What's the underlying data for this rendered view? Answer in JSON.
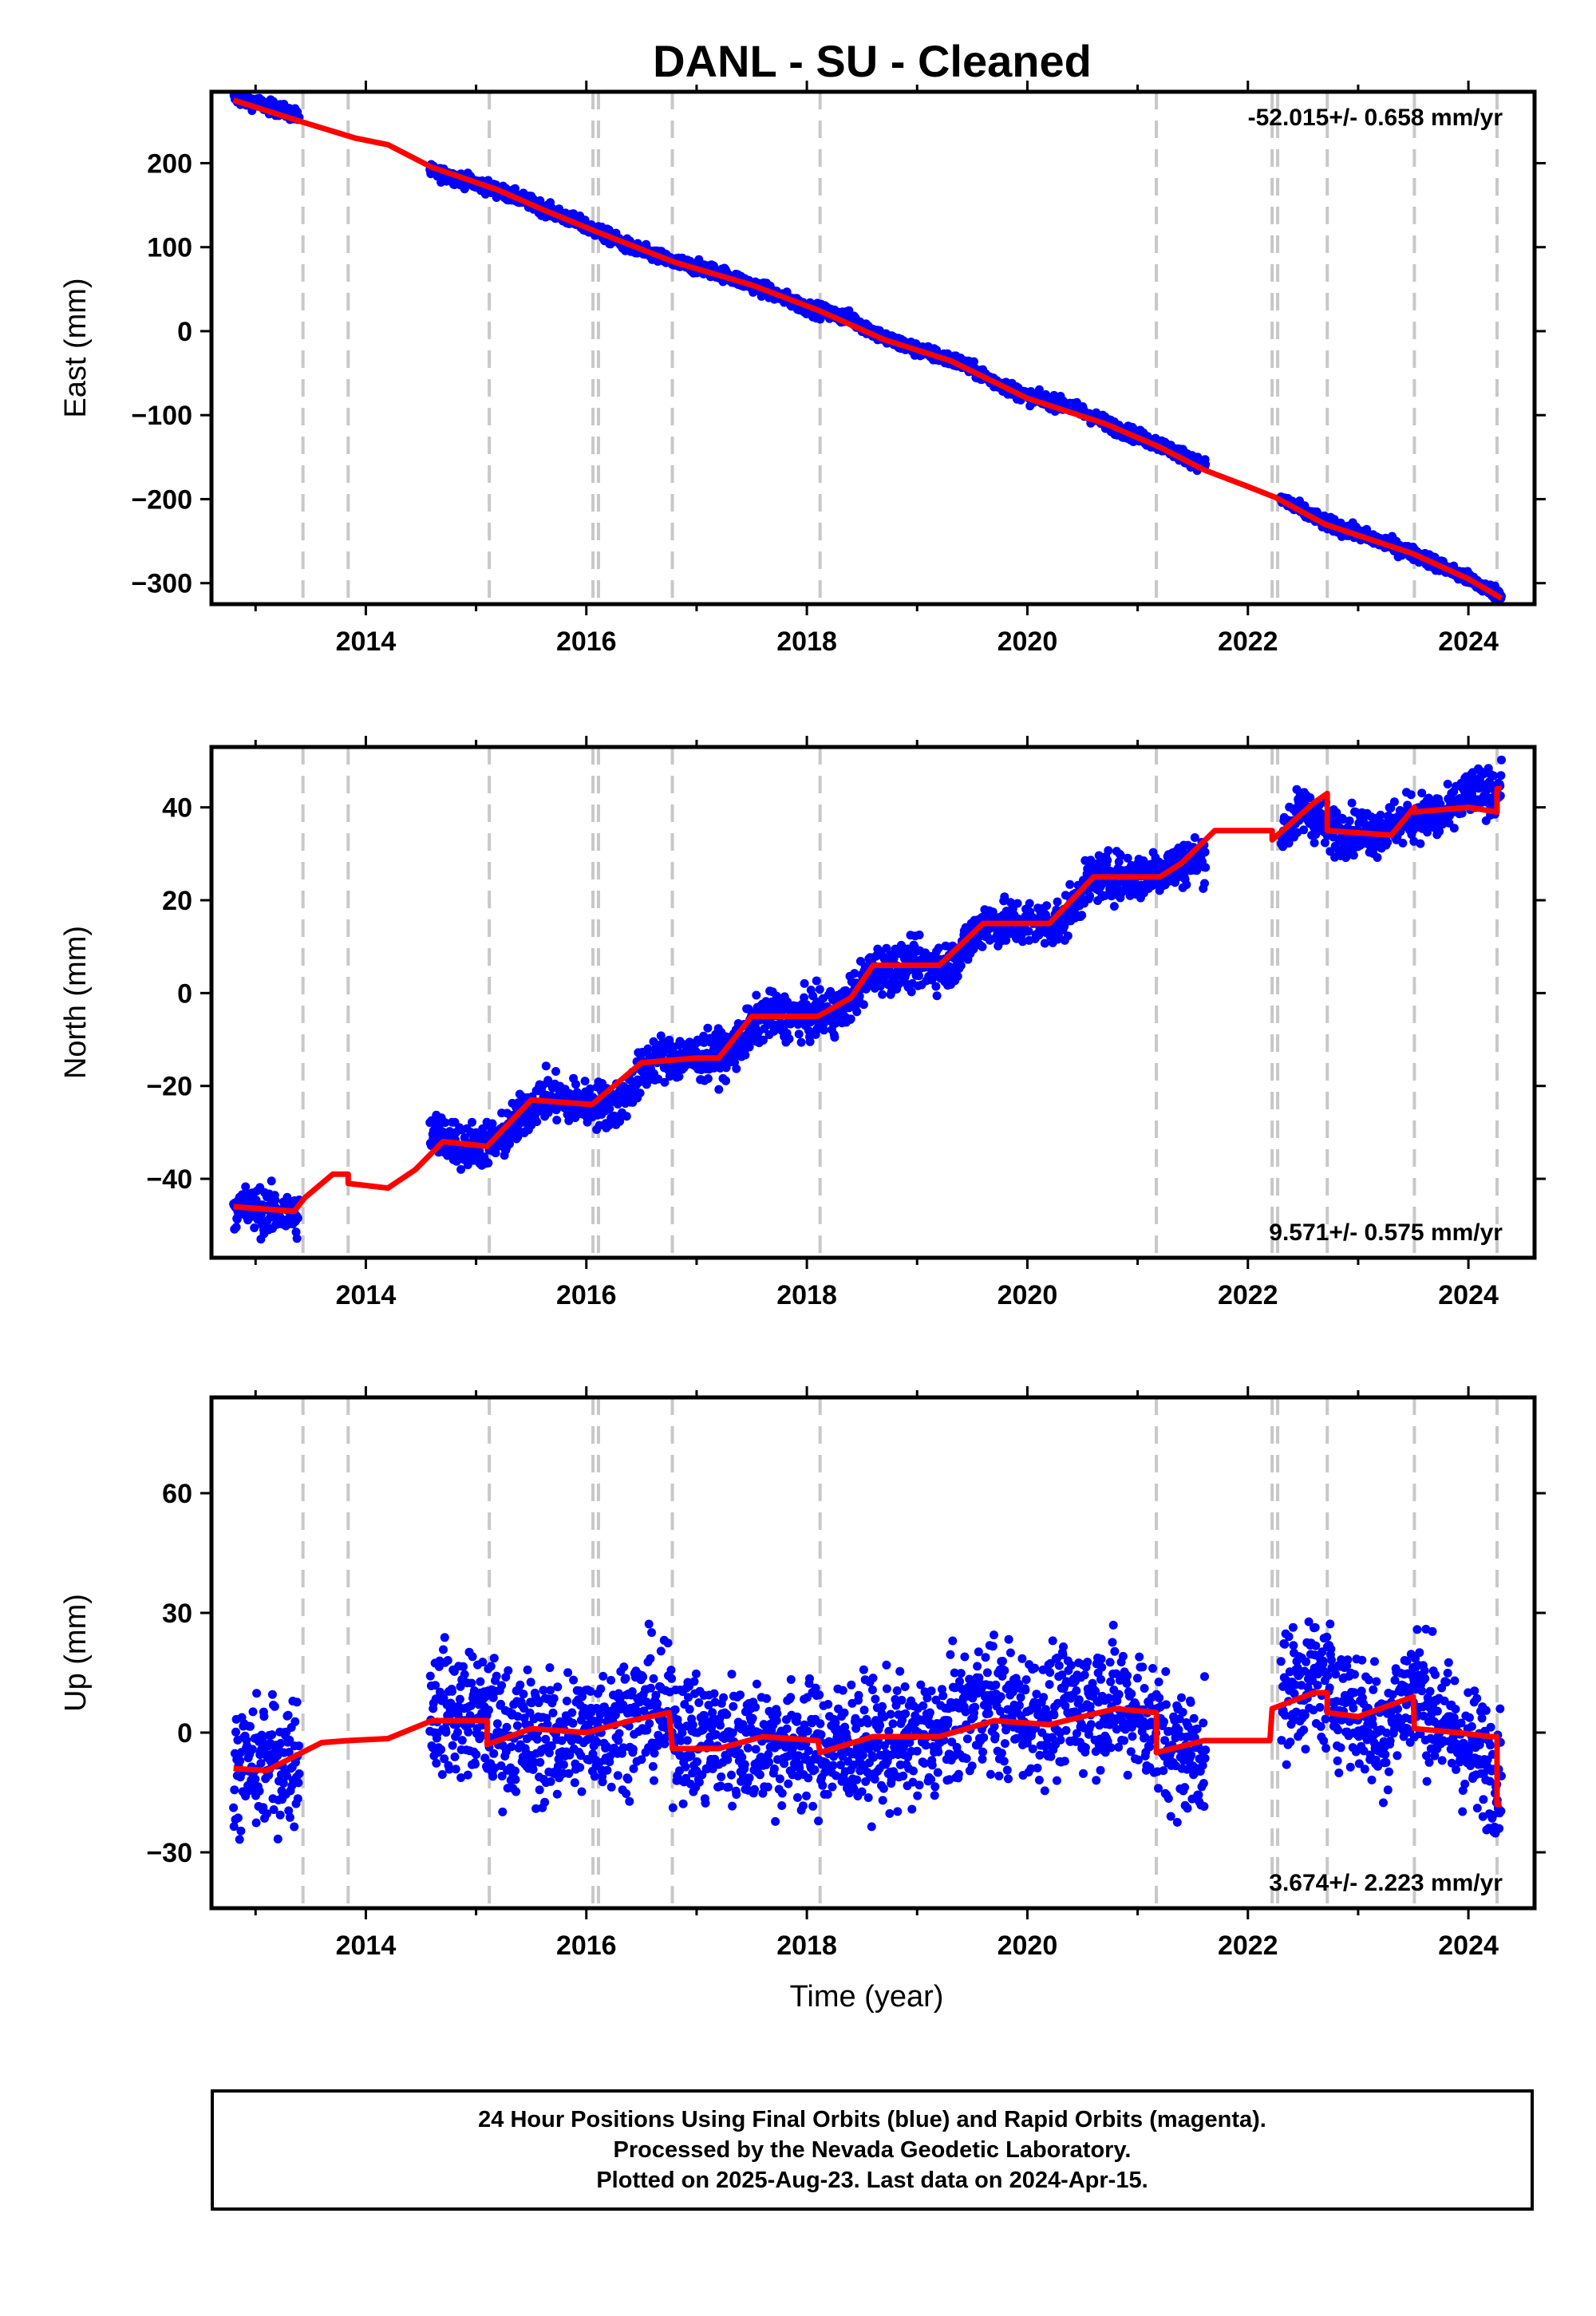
{
  "title": "DANL  - SU - Cleaned",
  "colors": {
    "final_orbits": "#0000ff",
    "model": "#ff0000",
    "breaks": "#c8c8c8"
  },
  "chart_data": [
    {
      "type": "scatter",
      "ylabel": "East (mm)",
      "xlabel": "",
      "xlim": [
        2012.6,
        2024.6
      ],
      "ylim": [
        -325,
        285
      ],
      "yticks": [
        -300,
        -200,
        -100,
        0,
        100,
        200
      ],
      "yticks_text": [
        "−300",
        "−200",
        "−100",
        "0",
        "100",
        "200"
      ],
      "xticks": [
        2014,
        2016,
        2018,
        2020,
        2022,
        2024
      ],
      "rate": "-52.015+/- 0.658 mm/yr",
      "rate_position": "top-right",
      "noise": 4,
      "series": [
        {
          "kind": "points",
          "values": [
            [
              2012.8,
              278
            ],
            [
              2013.0,
              272
            ],
            [
              2013.2,
              264
            ],
            [
              2013.35,
              258
            ],
            [
              2014.6,
              190
            ],
            [
              2015.0,
              176
            ],
            [
              2015.4,
              158
            ],
            [
              2016.0,
              125
            ],
            [
              2016.4,
              100
            ],
            [
              2016.8,
              82
            ],
            [
              2017.2,
              70
            ],
            [
              2017.6,
              50
            ],
            [
              2018.0,
              28
            ],
            [
              2018.4,
              15
            ],
            [
              2018.7,
              -8
            ],
            [
              2019.0,
              -22
            ],
            [
              2019.4,
              -38
            ],
            [
              2019.7,
              -60
            ],
            [
              2020.0,
              -78
            ],
            [
              2020.4,
              -90
            ],
            [
              2020.8,
              -115
            ],
            [
              2021.2,
              -135
            ],
            [
              2021.6,
              -160
            ],
            [
              2022.3,
              -200
            ],
            [
              2022.7,
              -228
            ],
            [
              2023.2,
              -250
            ],
            [
              2023.6,
              -270
            ],
            [
              2024.0,
              -295
            ],
            [
              2024.3,
              -315
            ]
          ]
        },
        {
          "kind": "line",
          "values": [
            [
              2012.8,
              275
            ],
            [
              2013.4,
              250
            ],
            [
              2013.9,
              230
            ],
            [
              2014.2,
              222
            ],
            [
              2014.6,
              195
            ],
            [
              2015.2,
              168
            ],
            [
              2015.6,
              145
            ],
            [
              2016.1,
              118
            ],
            [
              2016.8,
              82
            ],
            [
              2017.5,
              55
            ],
            [
              2018.1,
              25
            ],
            [
              2018.7,
              -10
            ],
            [
              2019.3,
              -35
            ],
            [
              2020.0,
              -80
            ],
            [
              2020.7,
              -110
            ],
            [
              2021.2,
              -138
            ],
            [
              2021.6,
              -165
            ],
            [
              2022.0,
              -185
            ],
            [
              2022.25,
              -198
            ],
            [
              2022.7,
              -230
            ],
            [
              2023.5,
              -265
            ],
            [
              2024.0,
              -295
            ],
            [
              2024.3,
              -318
            ]
          ]
        }
      ],
      "breaks": [
        2013.43,
        2013.84,
        2015.12,
        2016.06,
        2016.11,
        2016.78,
        2018.12,
        2021.17,
        2022.22,
        2022.27,
        2022.72,
        2023.51,
        2024.26
      ]
    },
    {
      "type": "scatter",
      "ylabel": "North (mm)",
      "xlabel": "",
      "xlim": [
        2012.6,
        2024.6
      ],
      "ylim": [
        -57,
        53
      ],
      "yticks": [
        -40,
        -20,
        0,
        20,
        40
      ],
      "yticks_text": [
        "−40",
        "−20",
        "0",
        "20",
        "40"
      ],
      "xticks": [
        2014,
        2016,
        2018,
        2020,
        2022,
        2024
      ],
      "rate": "9.571+/- 0.575 mm/yr",
      "rate_position": "bottom-right",
      "noise": 2.5,
      "series": [
        {
          "kind": "points",
          "values": [
            [
              2012.8,
              -46
            ],
            [
              2013.1,
              -47
            ],
            [
              2013.35,
              -48
            ],
            [
              2014.6,
              -30
            ],
            [
              2014.9,
              -33
            ],
            [
              2015.2,
              -32
            ],
            [
              2015.6,
              -22
            ],
            [
              2016.0,
              -24
            ],
            [
              2016.3,
              -24
            ],
            [
              2016.6,
              -14
            ],
            [
              2017.0,
              -14
            ],
            [
              2017.3,
              -13
            ],
            [
              2017.6,
              -5
            ],
            [
              2018.0,
              -5
            ],
            [
              2018.3,
              -4
            ],
            [
              2018.6,
              5
            ],
            [
              2019.0,
              6
            ],
            [
              2019.3,
              6
            ],
            [
              2019.6,
              15
            ],
            [
              2020.0,
              15
            ],
            [
              2020.3,
              15
            ],
            [
              2020.6,
              25
            ],
            [
              2021.0,
              25
            ],
            [
              2021.4,
              28
            ],
            [
              2022.3,
              34
            ],
            [
              2022.5,
              40
            ],
            [
              2022.75,
              35
            ],
            [
              2023.2,
              35
            ],
            [
              2023.5,
              38
            ],
            [
              2023.8,
              38
            ],
            [
              2024.0,
              43
            ],
            [
              2024.3,
              44
            ]
          ]
        },
        {
          "kind": "line",
          "values": [
            [
              2012.8,
              -46
            ],
            [
              2013.35,
              -47
            ],
            [
              2013.45,
              -44
            ],
            [
              2013.7,
              -39
            ],
            [
              2013.84,
              -39
            ],
            [
              2013.84,
              -41
            ],
            [
              2014.2,
              -42
            ],
            [
              2014.45,
              -38
            ],
            [
              2014.7,
              -32
            ],
            [
              2015.1,
              -33
            ],
            [
              2015.5,
              -23
            ],
            [
              2016.05,
              -24
            ],
            [
              2016.5,
              -15
            ],
            [
              2017.0,
              -14
            ],
            [
              2017.2,
              -14
            ],
            [
              2017.5,
              -5
            ],
            [
              2018.1,
              -5
            ],
            [
              2018.4,
              -1
            ],
            [
              2018.6,
              6
            ],
            [
              2019.2,
              6
            ],
            [
              2019.6,
              15
            ],
            [
              2020.2,
              15
            ],
            [
              2020.6,
              25
            ],
            [
              2021.2,
              25
            ],
            [
              2021.4,
              28
            ],
            [
              2021.7,
              35
            ],
            [
              2022.22,
              35
            ],
            [
              2022.22,
              33
            ],
            [
              2022.6,
              41
            ],
            [
              2022.72,
              43
            ],
            [
              2022.72,
              35
            ],
            [
              2023.3,
              34
            ],
            [
              2023.51,
              40
            ],
            [
              2023.51,
              39
            ],
            [
              2024.0,
              40
            ],
            [
              2024.26,
              39
            ],
            [
              2024.26,
              44
            ],
            [
              2024.3,
              44
            ]
          ]
        }
      ],
      "breaks": [
        2013.43,
        2013.84,
        2015.12,
        2016.06,
        2016.11,
        2016.78,
        2018.12,
        2021.17,
        2022.22,
        2022.27,
        2022.72,
        2023.51,
        2024.26
      ]
    },
    {
      "type": "scatter",
      "ylabel": "Up (mm)",
      "xlabel": "Time (year)",
      "xlim": [
        2012.6,
        2024.6
      ],
      "ylim": [
        -44,
        84
      ],
      "yticks": [
        -30,
        0,
        30,
        60
      ],
      "yticks_text": [
        "−30",
        "0",
        "30",
        "60"
      ],
      "xticks": [
        2014,
        2016,
        2018,
        2020,
        2022,
        2024
      ],
      "rate": "3.674+/- 2.223 mm/yr",
      "rate_position": "bottom-right",
      "noise": 8,
      "series": [
        {
          "kind": "points",
          "values": [
            [
              2012.8,
              -10
            ],
            [
              2013.1,
              -8
            ],
            [
              2013.35,
              -6
            ],
            [
              2014.6,
              6
            ],
            [
              2015.0,
              4
            ],
            [
              2015.3,
              0
            ],
            [
              2015.7,
              -2
            ],
            [
              2016.2,
              2
            ],
            [
              2016.6,
              6
            ],
            [
              2017.0,
              -2
            ],
            [
              2017.5,
              -2
            ],
            [
              2018.0,
              -4
            ],
            [
              2018.4,
              -3
            ],
            [
              2018.8,
              -3
            ],
            [
              2019.2,
              -1
            ],
            [
              2019.6,
              8
            ],
            [
              2019.9,
              5
            ],
            [
              2020.2,
              4
            ],
            [
              2020.6,
              8
            ],
            [
              2021.0,
              6
            ],
            [
              2021.3,
              -4
            ],
            [
              2021.6,
              -5
            ],
            [
              2022.35,
              10
            ],
            [
              2022.6,
              14
            ],
            [
              2022.9,
              8
            ],
            [
              2023.2,
              0
            ],
            [
              2023.5,
              12
            ],
            [
              2023.8,
              2
            ],
            [
              2024.0,
              -4
            ],
            [
              2024.3,
              -10
            ]
          ]
        },
        {
          "kind": "line",
          "values": [
            [
              2012.8,
              -9
            ],
            [
              2013.1,
              -9.5
            ],
            [
              2013.35,
              -6
            ],
            [
              2013.6,
              -2.5
            ],
            [
              2013.84,
              -2
            ],
            [
              2014.2,
              -1.5
            ],
            [
              2014.6,
              3
            ],
            [
              2015.1,
              3
            ],
            [
              2015.1,
              -3
            ],
            [
              2015.5,
              1
            ],
            [
              2016.0,
              0
            ],
            [
              2016.4,
              3
            ],
            [
              2016.75,
              5
            ],
            [
              2016.78,
              -4
            ],
            [
              2017.2,
              -4
            ],
            [
              2017.6,
              -1
            ],
            [
              2018.1,
              -2
            ],
            [
              2018.12,
              -5
            ],
            [
              2018.6,
              -1
            ],
            [
              2019.2,
              -1
            ],
            [
              2019.7,
              3
            ],
            [
              2020.2,
              2
            ],
            [
              2020.8,
              6
            ],
            [
              2021.17,
              5
            ],
            [
              2021.17,
              -5
            ],
            [
              2021.6,
              -2
            ],
            [
              2022.0,
              -2
            ],
            [
              2022.2,
              -2
            ],
            [
              2022.22,
              6
            ],
            [
              2022.6,
              10
            ],
            [
              2022.72,
              10
            ],
            [
              2022.72,
              5
            ],
            [
              2023.0,
              4
            ],
            [
              2023.5,
              9
            ],
            [
              2023.51,
              1
            ],
            [
              2023.9,
              0
            ],
            [
              2024.2,
              -1
            ],
            [
              2024.26,
              -1
            ],
            [
              2024.26,
              -18
            ],
            [
              2024.3,
              -18
            ]
          ]
        }
      ],
      "breaks": [
        2013.43,
        2013.84,
        2015.12,
        2016.06,
        2016.11,
        2016.78,
        2018.12,
        2021.17,
        2022.22,
        2022.27,
        2022.72,
        2023.51,
        2024.26
      ]
    }
  ],
  "footer": {
    "line1": "24 Hour Positions Using Final Orbits (blue) and Rapid Orbits (magenta).",
    "line2": "Processed by the Nevada Geodetic Laboratory.",
    "line3": "Plotted on 2025-Aug-23. Last data on 2024-Apr-15."
  }
}
